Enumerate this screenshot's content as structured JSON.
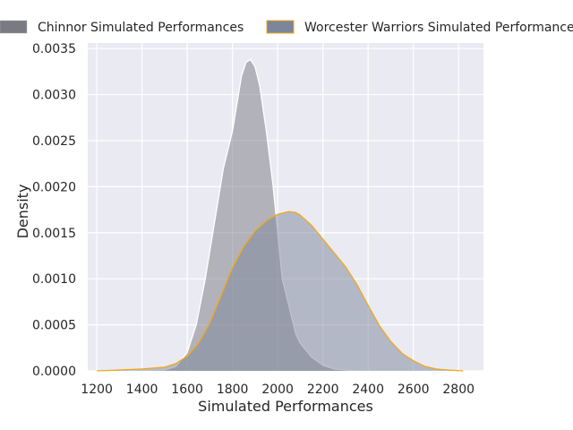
{
  "chart_data": {
    "type": "area",
    "title": "",
    "xlabel": "Simulated Performances",
    "ylabel": "Density",
    "xlim": [
      1160,
      2910
    ],
    "ylim": [
      0,
      0.00356
    ],
    "xticks": [
      1200,
      1400,
      1600,
      1800,
      2000,
      2200,
      2400,
      2600,
      2800
    ],
    "xtick_labels": [
      "1200",
      "1400",
      "1600",
      "1800",
      "2000",
      "2200",
      "2400",
      "2600",
      "2800"
    ],
    "yticks": [
      0,
      0.0005,
      0.001,
      0.0015,
      0.002,
      0.0025,
      0.003,
      0.0035
    ],
    "ytick_labels": [
      "0.0000",
      "0.0005",
      "0.0010",
      "0.0015",
      "0.0020",
      "0.0025",
      "0.0030",
      "0.0035"
    ],
    "grid": true,
    "legend_position": "top",
    "series": [
      {
        "name": "Chinnor Simulated Performances",
        "fill": "#7a7a82",
        "edge": "#ffffff",
        "x": [
          1200,
          1500,
          1550,
          1600,
          1640,
          1680,
          1720,
          1760,
          1800,
          1840,
          1860,
          1880,
          1900,
          1920,
          1950,
          1980,
          2000,
          2020,
          2050,
          2080,
          2100,
          2150,
          2200,
          2250,
          2300,
          2350,
          2400
        ],
        "y": [
          0,
          1e-05,
          5e-05,
          0.0002,
          0.0005,
          0.001,
          0.0016,
          0.0022,
          0.0026,
          0.0032,
          0.00335,
          0.00338,
          0.0033,
          0.0031,
          0.0026,
          0.002,
          0.0015,
          0.001,
          0.0007,
          0.0004,
          0.0003,
          0.00015,
          6e-05,
          2e-05,
          1e-05,
          0,
          0
        ]
      },
      {
        "name": "Worcester Warriors Simulated Performances",
        "fill": "#7c8599",
        "edge": "#f0a818",
        "x": [
          1200,
          1300,
          1400,
          1500,
          1550,
          1600,
          1650,
          1700,
          1750,
          1800,
          1850,
          1900,
          1950,
          2000,
          2050,
          2080,
          2100,
          2150,
          2200,
          2250,
          2300,
          2350,
          2400,
          2450,
          2500,
          2550,
          2600,
          2650,
          2700,
          2750,
          2820
        ],
        "y": [
          0,
          1e-05,
          2e-05,
          4e-05,
          8e-05,
          0.00016,
          0.0003,
          0.00052,
          0.00082,
          0.00112,
          0.00135,
          0.00152,
          0.00163,
          0.0017,
          0.00173,
          0.00172,
          0.00169,
          0.00158,
          0.00143,
          0.00128,
          0.00113,
          0.00094,
          0.00071,
          0.00049,
          0.00032,
          0.00019,
          0.00011,
          5e-05,
          2e-05,
          1e-05,
          0
        ]
      }
    ]
  }
}
